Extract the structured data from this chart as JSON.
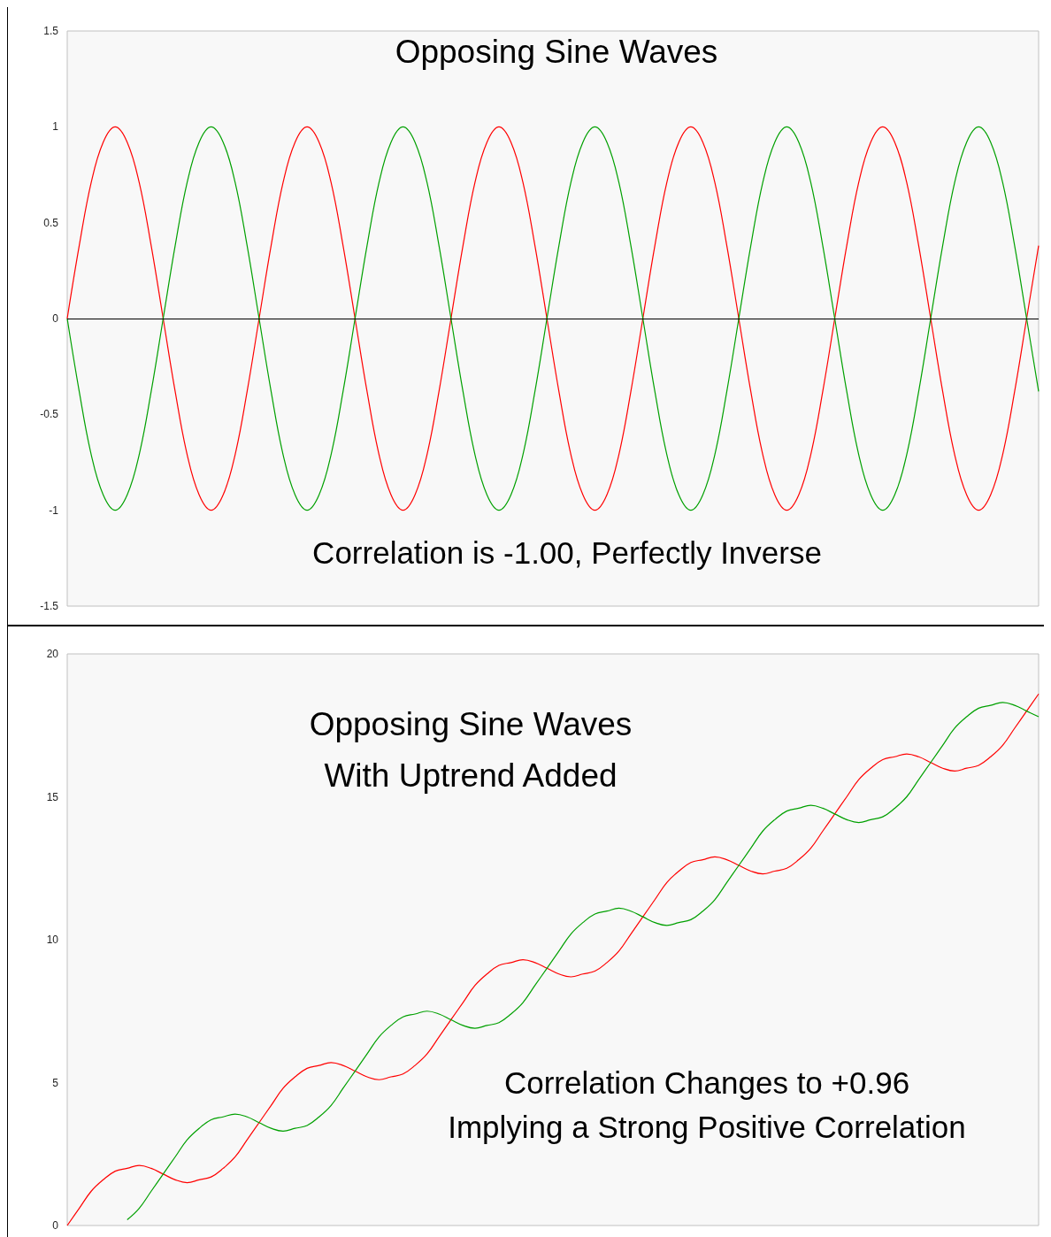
{
  "chart_data": [
    {
      "type": "line",
      "title": "Opposing Sine Waves",
      "annotations": [
        "Correlation is -1.00, Perfectly Inverse"
      ],
      "categories": [
        null,
        null,
        null,
        null,
        null,
        null,
        null,
        null,
        null,
        null,
        null,
        null,
        null,
        null,
        null,
        null,
        null,
        null,
        null,
        null,
        null,
        null,
        null,
        null,
        null,
        null,
        null,
        null,
        null,
        null,
        null,
        null,
        null,
        null,
        null,
        null,
        null,
        null,
        null,
        null,
        null,
        null,
        null,
        null,
        null,
        null,
        null,
        null,
        null,
        null,
        null,
        null,
        null,
        null,
        null,
        null,
        null,
        null,
        null,
        null,
        null,
        null,
        null,
        null,
        null,
        null,
        null,
        null,
        null,
        null,
        null,
        null,
        null,
        null,
        null,
        null,
        null,
        null,
        null,
        null,
        null,
        null
      ],
      "series": [
        {
          "color": "#ff0000",
          "values": [
            0,
            0.38,
            0.71,
            0.92,
            1,
            0.92,
            0.71,
            0.38,
            0,
            -0.38,
            -0.71,
            -0.92,
            -1,
            -0.92,
            -0.71,
            -0.38,
            0,
            0.38,
            0.71,
            0.92,
            1,
            0.92,
            0.71,
            0.38,
            0,
            -0.38,
            -0.71,
            -0.92,
            -1,
            -0.92,
            -0.71,
            -0.38,
            0,
            0.38,
            0.71,
            0.92,
            1,
            0.92,
            0.71,
            0.38,
            0,
            -0.38,
            -0.71,
            -0.92,
            -1,
            -0.92,
            -0.71,
            -0.38,
            0,
            0.38,
            0.71,
            0.92,
            1,
            0.92,
            0.71,
            0.38,
            0,
            -0.38,
            -0.71,
            -0.92,
            -1,
            -0.92,
            -0.71,
            -0.38,
            0,
            0.38,
            0.71,
            0.92,
            1,
            0.92,
            0.71,
            0.38,
            0,
            -0.38,
            -0.71,
            -0.92,
            -1,
            -0.92,
            -0.71,
            -0.38,
            0,
            0.38
          ]
        },
        {
          "color": "#00a000",
          "values": [
            0,
            -0.38,
            -0.71,
            -0.92,
            -1,
            -0.92,
            -0.71,
            -0.38,
            0,
            0.38,
            0.71,
            0.92,
            1,
            0.92,
            0.71,
            0.38,
            0,
            -0.38,
            -0.71,
            -0.92,
            -1,
            -0.92,
            -0.71,
            -0.38,
            0,
            0.38,
            0.71,
            0.92,
            1,
            0.92,
            0.71,
            0.38,
            0,
            -0.38,
            -0.71,
            -0.92,
            -1,
            -0.92,
            -0.71,
            -0.38,
            0,
            0.38,
            0.71,
            0.92,
            1,
            0.92,
            0.71,
            0.38,
            0,
            -0.38,
            -0.71,
            -0.92,
            -1,
            -0.92,
            -0.71,
            -0.38,
            0,
            0.38,
            0.71,
            0.92,
            1,
            0.92,
            0.71,
            0.38,
            0,
            -0.38,
            -0.71,
            -0.92,
            -1,
            -0.92,
            -0.71,
            -0.38,
            0,
            0.38,
            0.71,
            0.92,
            1,
            0.92,
            0.71,
            0.38,
            0,
            -0.38
          ]
        }
      ],
      "ylim": [
        -1.5,
        1.5
      ],
      "yticks": [
        -1.5,
        -1,
        -0.5,
        0,
        0.5,
        1,
        1.5
      ],
      "ref_lines": [
        {
          "axis": "y",
          "value": 0,
          "color": "#000000"
        }
      ],
      "grid": false,
      "tick_labels": "y",
      "marker": "none"
    },
    {
      "type": "line",
      "title": "Opposing Sine Waves",
      "subtitle": "With Uptrend Added",
      "annotations": [
        "Correlation Changes to +0.96",
        "Implying a Strong Positive Correlation"
      ],
      "categories": [
        null,
        null,
        null,
        null,
        null,
        null,
        null,
        null,
        null,
        null,
        null,
        null,
        null,
        null,
        null,
        null,
        null,
        null,
        null,
        null,
        null,
        null,
        null,
        null,
        null,
        null,
        null,
        null,
        null,
        null,
        null,
        null,
        null,
        null,
        null,
        null,
        null,
        null,
        null,
        null,
        null,
        null,
        null,
        null,
        null,
        null,
        null,
        null,
        null,
        null,
        null,
        null,
        null,
        null,
        null,
        null,
        null,
        null,
        null,
        null,
        null,
        null,
        null,
        null,
        null,
        null,
        null,
        null,
        null,
        null,
        null,
        null,
        null,
        null,
        null,
        null,
        null,
        null,
        null,
        null,
        null,
        null
      ],
      "series": [
        {
          "color": "#ff0000",
          "values": [
            0,
            0.6,
            1.2,
            1.6,
            1.9,
            2.0,
            2.1,
            2.0,
            1.8,
            1.6,
            1.5,
            1.6,
            1.7,
            2.0,
            2.4,
            3.0,
            3.6,
            4.2,
            4.8,
            5.2,
            5.5,
            5.6,
            5.7,
            5.6,
            5.4,
            5.2,
            5.1,
            5.2,
            5.3,
            5.6,
            6.0,
            6.6,
            7.2,
            7.8,
            8.4,
            8.8,
            9.1,
            9.2,
            9.3,
            9.2,
            9.0,
            8.8,
            8.7,
            8.8,
            8.9,
            9.2,
            9.6,
            10.2,
            10.8,
            11.4,
            12.0,
            12.4,
            12.7,
            12.8,
            12.9,
            12.8,
            12.6,
            12.4,
            12.3,
            12.4,
            12.5,
            12.8,
            13.2,
            13.8,
            14.4,
            15.0,
            15.6,
            16.0,
            16.3,
            16.4,
            16.5,
            16.4,
            16.2,
            16.0,
            15.9,
            16.0,
            16.1,
            16.4,
            16.8,
            17.4,
            18.0,
            18.6
          ]
        },
        {
          "color": "#00a000",
          "values": [
            null,
            null,
            null,
            null,
            null,
            0.2,
            0.6,
            1.2,
            1.8,
            2.4,
            3.0,
            3.4,
            3.7,
            3.8,
            3.9,
            3.8,
            3.6,
            3.4,
            3.3,
            3.4,
            3.5,
            3.8,
            4.2,
            4.8,
            5.4,
            6.0,
            6.6,
            7.0,
            7.3,
            7.4,
            7.5,
            7.4,
            7.2,
            7.0,
            6.9,
            7.0,
            7.1,
            7.4,
            7.8,
            8.4,
            9.0,
            9.6,
            10.2,
            10.6,
            10.9,
            11.0,
            11.1,
            11.0,
            10.8,
            10.6,
            10.5,
            10.6,
            10.7,
            11.0,
            11.4,
            12.0,
            12.6,
            13.2,
            13.8,
            14.2,
            14.5,
            14.6,
            14.7,
            14.6,
            14.4,
            14.2,
            14.1,
            14.2,
            14.3,
            14.6,
            15.0,
            15.6,
            16.2,
            16.8,
            17.4,
            17.8,
            18.1,
            18.2,
            18.3,
            18.2,
            18.0,
            17.8
          ]
        }
      ],
      "ylim": [
        0,
        20
      ],
      "yticks": [
        0,
        5,
        10,
        15,
        20
      ],
      "grid": false,
      "tick_labels": "y",
      "marker": "none"
    }
  ]
}
